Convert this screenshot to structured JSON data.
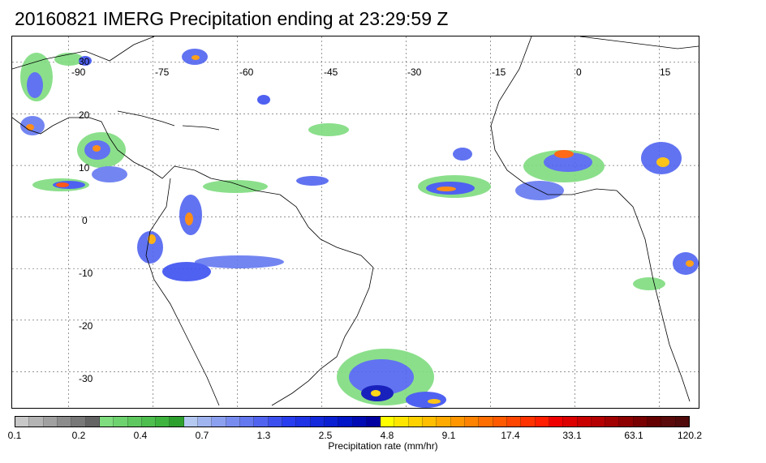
{
  "title": "20160821 IMERG Precipitation ending at 23:29:59 Z",
  "map": {
    "projection": "equirectangular",
    "lon_range": [
      -100,
      22
    ],
    "lat_range": [
      -37,
      35
    ],
    "longitude_labels": [
      "-90",
      "-75",
      "-60",
      "-45",
      "-30",
      "-15",
      "0",
      "15"
    ],
    "longitude_values": [
      -90,
      -75,
      -60,
      -45,
      -30,
      -15,
      0,
      15
    ],
    "latitude_labels": [
      "30",
      "20",
      "10",
      "0",
      "-10",
      "-20",
      "-30"
    ],
    "latitude_values": [
      30,
      20,
      10,
      0,
      -10,
      -20,
      -30
    ],
    "grid": "dashed"
  },
  "colorbar": {
    "colors": [
      "#c8c8c8",
      "#b4b4b4",
      "#a0a0a0",
      "#8c8c8c",
      "#787878",
      "#646464",
      "#7fdc7f",
      "#6ed26e",
      "#5ec85e",
      "#4ebe4e",
      "#3eb43e",
      "#2ea02e",
      "#b4c8f0",
      "#a0b4f0",
      "#8ca0f0",
      "#788cf0",
      "#6478f0",
      "#5064f0",
      "#3c50f0",
      "#283cf0",
      "#1e32e6",
      "#1428dc",
      "#0a1ed2",
      "#0014c8",
      "#000ab4",
      "#0000a0",
      "#ffff00",
      "#ffe600",
      "#ffd200",
      "#ffbe00",
      "#ffaa00",
      "#ff9600",
      "#ff8200",
      "#ff6e00",
      "#ff5a00",
      "#ff4600",
      "#ff3200",
      "#ff1e00",
      "#f00000",
      "#dc0000",
      "#c80000",
      "#b40000",
      "#a00000",
      "#8c0000",
      "#780000",
      "#640000",
      "#5a0a0a",
      "#500a0a"
    ],
    "tick_labels": [
      "0.1",
      "0.2",
      "0.4",
      "0.7",
      "1.3",
      "2.5",
      "4.8",
      "9.1",
      "17.4",
      "33.1",
      "63.1",
      "120.2"
    ],
    "label": "Precipitation rate (mm/hr)"
  }
}
